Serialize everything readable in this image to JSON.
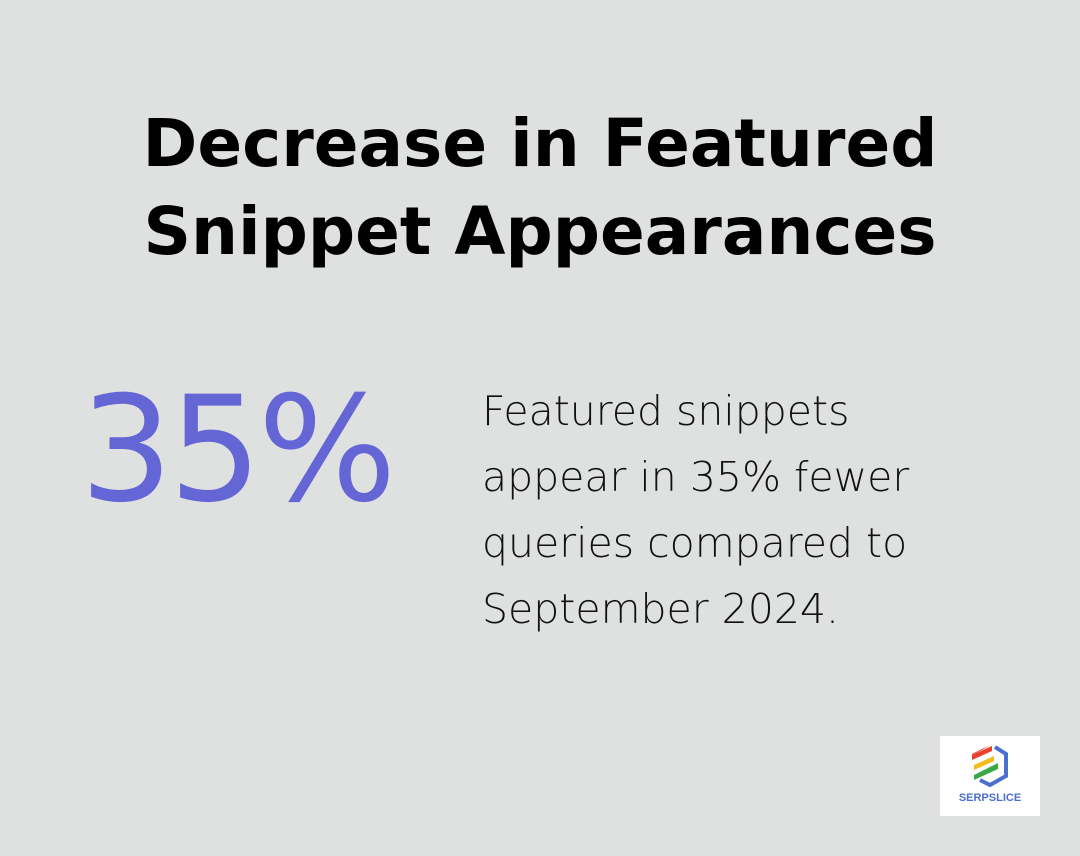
{
  "title_lines": [
    "Decrease in Featured",
    "Snippet Appearances"
  ],
  "stat": {
    "value": "35%",
    "color": "#6366d4"
  },
  "description_lines": [
    "Featured snippets",
    "appear in 35% fewer",
    "queries compared to",
    "September 2024."
  ],
  "logo": {
    "text": "SERPSLICE",
    "colors": [
      "#e8412c",
      "#f4bb1a",
      "#3aa845",
      "#4b6fd0"
    ]
  }
}
